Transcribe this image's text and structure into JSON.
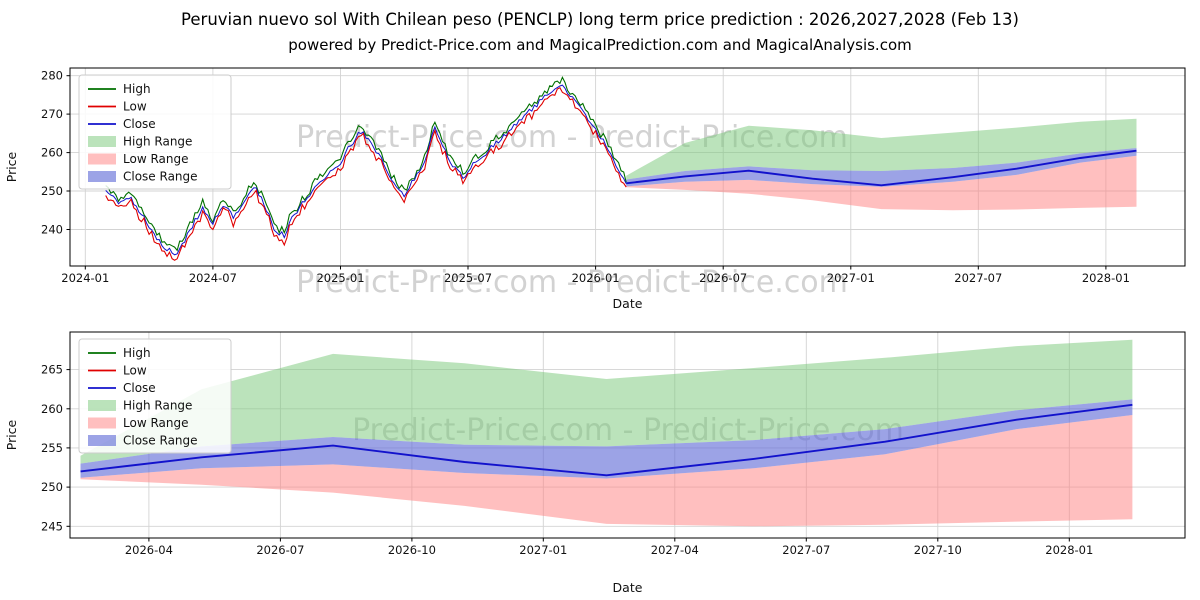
{
  "title": "Peruvian nuevo sol With Chilean peso (PENCLP) long term price prediction : 2026,2027,2028 (Feb 13)",
  "subtitle": "powered by Predict-Price.com and MagicalPrediction.com and MagicalAnalysis.com",
  "watermark": "Predict-Price.com - Predict-Price.com",
  "style": {
    "high": "#007000",
    "low": "#e00000",
    "close": "#1212cc",
    "high_range": "rgba(120,200,120,0.5)",
    "low_range": "rgba(255,128,128,0.5)",
    "close_range": "rgba(96,106,214,0.62)",
    "grid": "#d3d3d3",
    "axis": "#000000",
    "text": "#111111",
    "watermark_color": "#d2d2d2",
    "watermark_size": 30,
    "tick_size": 11.5,
    "label_size": 12.5,
    "legend_size": 12
  },
  "legend": {
    "entries": [
      {
        "label": "High",
        "type": "line",
        "color": "high"
      },
      {
        "label": "Low",
        "type": "line",
        "color": "low"
      },
      {
        "label": "Close",
        "type": "line",
        "color": "close"
      },
      {
        "label": "High Range",
        "type": "patch",
        "color": "high_range"
      },
      {
        "label": "Low Range",
        "type": "patch",
        "color": "low_range"
      },
      {
        "label": "Close Range",
        "type": "patch",
        "color": "close_range"
      }
    ]
  },
  "chart_data": [
    {
      "id": "top",
      "type": "line",
      "xlabel": "Date",
      "ylabel": "Price",
      "xlim": [
        2023.94,
        2028.31
      ],
      "ylim": [
        230.5,
        282
      ],
      "xticks": {
        "values": [
          2024.0,
          2024.5,
          2025.0,
          2025.5,
          2026.0,
          2026.5,
          2027.0,
          2027.5,
          2028.0
        ],
        "labels": [
          "2024-01",
          "2024-07",
          "2025-01",
          "2025-07",
          "2026-01",
          "2026-07",
          "2027-01",
          "2027-07",
          "2028-01"
        ]
      },
      "yticks": [
        240,
        250,
        260,
        270,
        280
      ],
      "watermarks": [
        {
          "x": 0.45,
          "y": 0.4
        },
        {
          "x": 0.45,
          "y": 1.13
        }
      ],
      "history": {
        "seed": 11,
        "step": 0.01,
        "jitter": 1.4,
        "spread": 1.8,
        "t": [
          2024.08,
          2024.13,
          2024.18,
          2024.24,
          2024.3,
          2024.35,
          2024.38,
          2024.42,
          2024.46,
          2024.5,
          2024.54,
          2024.58,
          2024.62,
          2024.66,
          2024.7,
          2024.74,
          2024.78,
          2024.82,
          2024.86,
          2024.9,
          2024.95,
          2025.0,
          2025.04,
          2025.08,
          2025.12,
          2025.17,
          2025.21,
          2025.25,
          2025.29,
          2025.33,
          2025.37,
          2025.4,
          2025.44,
          2025.48,
          2025.52,
          2025.57,
          2025.62,
          2025.67,
          2025.72,
          2025.77,
          2025.82,
          2025.86,
          2025.89,
          2025.93,
          2025.97,
          2026.01,
          2026.05,
          2026.09,
          2026.12
        ],
        "close": [
          250,
          247,
          248,
          242,
          236,
          233.5,
          236,
          241,
          245.5,
          241.5,
          246,
          243.5,
          247,
          251.5,
          247,
          240,
          238.5,
          244,
          247.5,
          251,
          254.5,
          257.5,
          262,
          265.5,
          262.5,
          257.5,
          251.5,
          249,
          253.5,
          258,
          266.5,
          262,
          256.5,
          253.5,
          257,
          260,
          263,
          266,
          269.5,
          272.5,
          276,
          278,
          275.5,
          272.5,
          269,
          265,
          261,
          255,
          252
        ]
      },
      "prediction": {
        "t": [
          2026.12,
          2026.35,
          2026.6,
          2026.85,
          2027.12,
          2027.4,
          2027.65,
          2027.9,
          2028.12
        ],
        "close": [
          252.0,
          253.8,
          255.3,
          253.2,
          251.5,
          253.6,
          255.8,
          258.6,
          260.5
        ],
        "close_upper": [
          253.0,
          255.2,
          256.4,
          255.4,
          255.2,
          256.0,
          257.4,
          259.8,
          261.2
        ],
        "close_lower": [
          251.2,
          252.4,
          252.9,
          251.8,
          251.1,
          252.4,
          254.2,
          257.4,
          259.2
        ],
        "high_top": [
          254.0,
          262.5,
          267.0,
          265.8,
          263.8,
          265.2,
          266.5,
          268.0,
          268.8
        ],
        "low_bottom": [
          251.0,
          250.3,
          249.3,
          247.6,
          245.3,
          245.0,
          245.2,
          245.6,
          245.9
        ]
      }
    },
    {
      "id": "bottom",
      "type": "line",
      "xlabel": "Date",
      "ylabel": "Price",
      "xlim": [
        2026.1,
        2028.22
      ],
      "ylim": [
        243.5,
        269.8
      ],
      "xticks": {
        "values": [
          2026.25,
          2026.5,
          2026.75,
          2027.0,
          2027.25,
          2027.5,
          2027.75,
          2028.0
        ],
        "labels": [
          "2026-04",
          "2026-07",
          "2026-10",
          "2027-01",
          "2027-04",
          "2027-07",
          "2027-10",
          "2028-01"
        ]
      },
      "yticks": [
        245,
        250,
        255,
        260,
        265
      ],
      "watermarks": [
        {
          "x": 0.5,
          "y": 0.525
        }
      ],
      "prediction": {
        "t": [
          2026.12,
          2026.35,
          2026.6,
          2026.85,
          2027.12,
          2027.4,
          2027.65,
          2027.9,
          2028.12
        ],
        "close": [
          252.0,
          253.8,
          255.3,
          253.2,
          251.5,
          253.6,
          255.8,
          258.6,
          260.5
        ],
        "close_upper": [
          253.0,
          255.2,
          256.4,
          255.4,
          255.2,
          256.0,
          257.4,
          259.8,
          261.2
        ],
        "close_lower": [
          251.2,
          252.4,
          252.9,
          251.8,
          251.1,
          252.4,
          254.2,
          257.4,
          259.2
        ],
        "high_top": [
          254.0,
          262.5,
          267.0,
          265.8,
          263.8,
          265.2,
          266.5,
          268.0,
          268.8
        ],
        "low_bottom": [
          251.0,
          250.3,
          249.3,
          247.6,
          245.3,
          245.0,
          245.2,
          245.6,
          245.9
        ]
      }
    }
  ]
}
